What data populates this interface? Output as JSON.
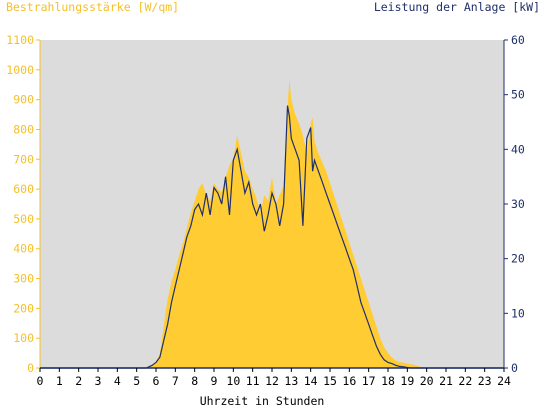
{
  "chart_data": {
    "type": "area",
    "title": "",
    "xlabel": "Uhrzeit in Stunden",
    "ylabel_left": "Bestrahlungsstärke [W/qm]",
    "ylabel_right": "Leistung der Anlage [kW]",
    "x_ticks": [
      "0",
      "1",
      "2",
      "3",
      "4",
      "5",
      "6",
      "7",
      "8",
      "9",
      "10",
      "11",
      "12",
      "13",
      "14",
      "15",
      "16",
      "17",
      "18",
      "19",
      "20",
      "21",
      "22",
      "23",
      "24"
    ],
    "y_left_ticks": [
      "0",
      "100",
      "200",
      "300",
      "400",
      "500",
      "600",
      "700",
      "800",
      "900",
      "1000",
      "1100"
    ],
    "y_right_ticks": [
      "0",
      "10",
      "20",
      "30",
      "40",
      "50",
      "60"
    ],
    "xlim": [
      0,
      24
    ],
    "ylim_left": [
      0,
      1100
    ],
    "ylim_right": [
      0,
      60
    ],
    "grid": false,
    "series": [
      {
        "name": "Bestrahlungsstärke [W/qm]",
        "axis": "left",
        "color": "#ffcc33",
        "x": [
          0,
          5.5,
          5.8,
          6.0,
          6.2,
          6.4,
          6.5,
          6.6,
          6.8,
          7.0,
          7.2,
          7.4,
          7.6,
          7.8,
          8.0,
          8.2,
          8.4,
          8.6,
          8.8,
          9.0,
          9.2,
          9.4,
          9.6,
          9.8,
          10.0,
          10.2,
          10.4,
          10.6,
          10.8,
          11.0,
          11.2,
          11.4,
          11.6,
          11.8,
          12.0,
          12.2,
          12.4,
          12.6,
          12.8,
          12.9,
          13.0,
          13.2,
          13.4,
          13.6,
          13.8,
          14.0,
          14.1,
          14.2,
          14.4,
          14.6,
          14.8,
          15.0,
          15.2,
          15.4,
          15.6,
          15.8,
          16.0,
          16.2,
          16.4,
          16.6,
          16.8,
          17.0,
          17.2,
          17.4,
          17.6,
          17.8,
          18.0,
          18.2,
          18.4,
          18.6,
          18.8,
          19.0,
          19.2,
          19.4,
          19.6,
          19.8,
          20.0,
          24
        ],
        "values": [
          0,
          0,
          10,
          20,
          50,
          140,
          190,
          230,
          290,
          330,
          380,
          420,
          470,
          520,
          560,
          600,
          620,
          580,
          560,
          620,
          600,
          590,
          640,
          680,
          700,
          780,
          720,
          660,
          640,
          600,
          570,
          520,
          580,
          560,
          640,
          550,
          580,
          610,
          870,
          970,
          900,
          850,
          820,
          780,
          720,
          820,
          840,
          760,
          720,
          690,
          660,
          620,
          580,
          540,
          500,
          460,
          420,
          380,
          340,
          300,
          260,
          220,
          180,
          140,
          100,
          70,
          50,
          35,
          25,
          20,
          18,
          15,
          12,
          10,
          5,
          2,
          0,
          0
        ]
      },
      {
        "name": "Leistung der Anlage [kW]",
        "axis": "right",
        "color": "#1f2f6b",
        "x": [
          0,
          5.5,
          5.8,
          6.0,
          6.2,
          6.4,
          6.6,
          6.8,
          7.0,
          7.2,
          7.4,
          7.6,
          7.8,
          8.0,
          8.2,
          8.4,
          8.6,
          8.8,
          9.0,
          9.2,
          9.4,
          9.6,
          9.8,
          10.0,
          10.2,
          10.4,
          10.6,
          10.8,
          11.0,
          11.2,
          11.4,
          11.6,
          11.8,
          12.0,
          12.2,
          12.4,
          12.6,
          12.8,
          12.9,
          13.0,
          13.2,
          13.4,
          13.6,
          13.8,
          14.0,
          14.1,
          14.2,
          14.4,
          14.6,
          14.8,
          15.0,
          15.2,
          15.4,
          15.6,
          15.8,
          16.0,
          16.2,
          16.4,
          16.6,
          16.8,
          17.0,
          17.2,
          17.4,
          17.6,
          17.8,
          18.0,
          18.2,
          18.4,
          18.6,
          18.8,
          19.0,
          19.2,
          19.4,
          19.6,
          19.8,
          20.0,
          24
        ],
        "values": [
          0,
          0,
          0.5,
          1,
          2,
          5,
          8,
          12,
          15,
          18,
          21,
          24,
          26,
          29,
          30,
          28,
          32,
          28,
          33,
          32,
          30,
          35,
          28,
          38,
          40,
          36,
          32,
          34,
          30,
          28,
          30,
          25,
          28,
          32,
          30,
          26,
          30,
          48,
          46,
          42,
          40,
          38,
          26,
          42,
          44,
          36,
          38,
          36,
          34,
          32,
          30,
          28,
          26,
          24,
          22,
          20,
          18,
          15,
          12,
          10,
          8,
          6,
          4,
          2.5,
          1.5,
          1,
          0.8,
          0.5,
          0.3,
          0.2,
          0.1,
          0,
          0,
          0,
          0,
          0,
          0
        ]
      }
    ]
  }
}
